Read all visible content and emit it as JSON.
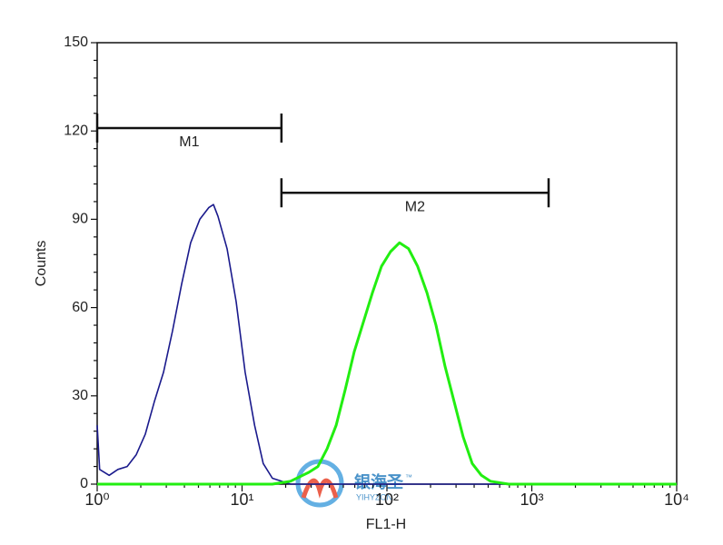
{
  "chart_data": {
    "type": "histogram-overlay",
    "xlabel": "FL1-H",
    "ylabel": "Counts",
    "xscale": "log",
    "xlim": [
      1,
      10000
    ],
    "ylim": [
      0,
      150
    ],
    "xticks": [
      {
        "value": 1,
        "label": "10⁰"
      },
      {
        "value": 10,
        "label": "10¹"
      },
      {
        "value": 100,
        "label": "10²"
      },
      {
        "value": 1000,
        "label": "10³"
      },
      {
        "value": 10000,
        "label": "10⁴"
      }
    ],
    "yticks": [
      0,
      30,
      60,
      90,
      120,
      150
    ],
    "series": [
      {
        "color": "#1a1a8c",
        "x": [
          1,
          1.04,
          1.21,
          1.39,
          1.61,
          1.86,
          2.15,
          2.48,
          2.87,
          3.31,
          3.83,
          4.42,
          5.11,
          5.9,
          6.35,
          6.82,
          7.88,
          9.1,
          10.5,
          12.2,
          14.0,
          16.2,
          18.7,
          21.6,
          10000
        ],
        "values": [
          20,
          5,
          3,
          5,
          6,
          10,
          17,
          28,
          38,
          52,
          68,
          82,
          90,
          94,
          95,
          91,
          80,
          62,
          38,
          20,
          7,
          2,
          1,
          0,
          0
        ]
      },
      {
        "color": "#22ee11",
        "x": [
          1,
          16.2,
          21.6,
          28.9,
          33.4,
          38.6,
          44.6,
          51.5,
          59.5,
          68.7,
          79.4,
          91.7,
          106,
          122,
          141,
          163,
          189,
          218,
          252,
          291,
          336,
          388,
          449,
          518,
          692,
          10000
        ],
        "values": [
          0,
          0,
          1,
          4,
          6,
          12,
          20,
          32,
          45,
          55,
          65,
          74,
          79,
          82,
          80,
          74,
          65,
          54,
          40,
          28,
          16,
          7,
          3,
          1,
          0,
          0
        ]
      }
    ],
    "markers": [
      {
        "label": "M1",
        "start": 1,
        "end": 18.7,
        "level": 121
      },
      {
        "label": "M2",
        "start": 18.7,
        "end": 1306,
        "level": 99
      }
    ],
    "watermark": {
      "text": "银海圣",
      "trademark": "™",
      "subtext": "YIHYZON"
    }
  }
}
